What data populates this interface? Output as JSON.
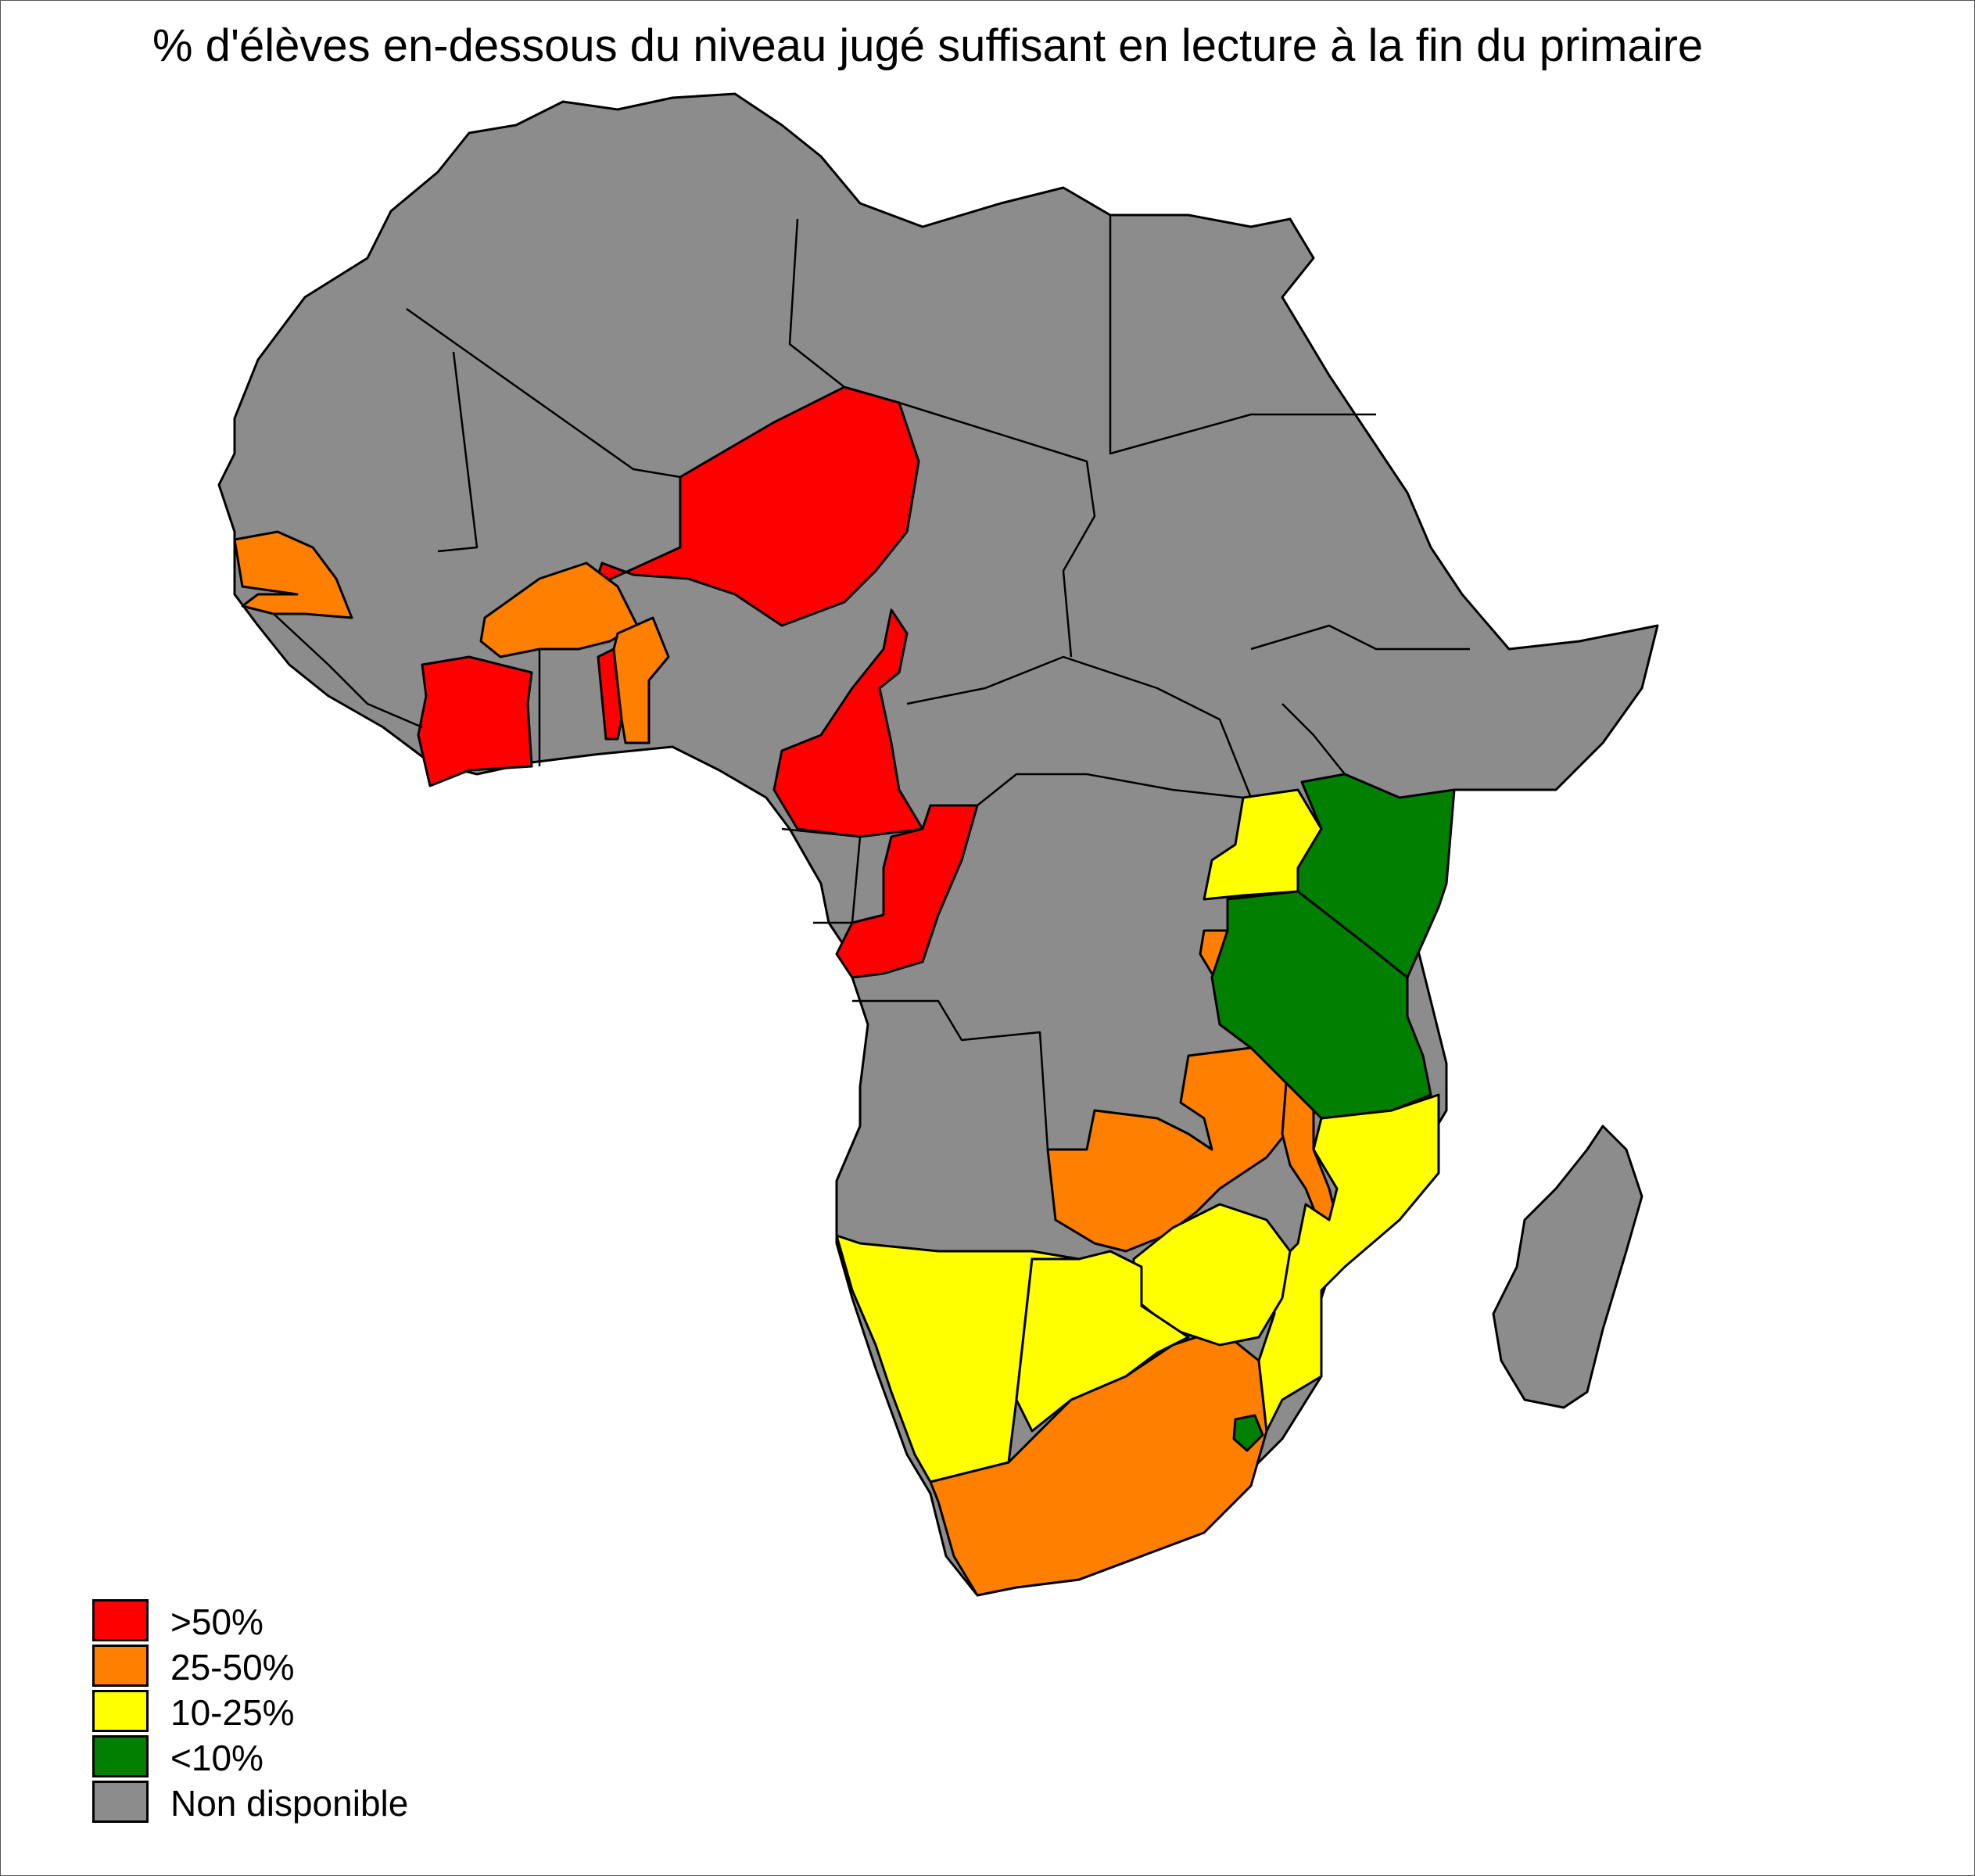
{
  "title": "% d'élèves en-dessous du niveau jugé suffisant en lecture à la fin du primaire",
  "colors": {
    "above_50": "#ff0000",
    "25_50": "#ff7f00",
    "10_25": "#ffff00",
    "below_10": "#007f00",
    "na": "#8c8c8c",
    "border": "#000000"
  },
  "legend": [
    {
      "label": ">50%",
      "category": "above_50",
      "color": "#ff0000"
    },
    {
      "label": "25-50%",
      "category": "25_50",
      "color": "#ff7f00"
    },
    {
      "label": "10-25%",
      "category": "10_25",
      "color": "#ffff00"
    },
    {
      "label": "<10%",
      "category": "below_10",
      "color": "#007f00"
    },
    {
      "label": "Non disponible",
      "category": "na",
      "color": "#8c8c8c"
    }
  ]
}
